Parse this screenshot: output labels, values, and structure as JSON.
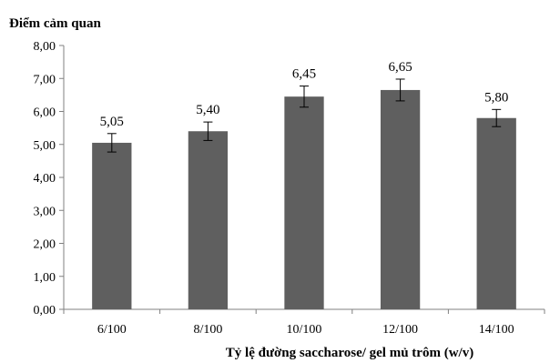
{
  "chart_data": {
    "type": "bar",
    "ylabel": "Điểm cảm quan",
    "xlabel": "Tỷ lệ đường saccharose/ gel mủ trôm (w/v)",
    "categories": [
      "6/100",
      "8/100",
      "10/100",
      "12/100",
      "14/100"
    ],
    "values": [
      5.05,
      5.4,
      6.45,
      6.65,
      5.8
    ],
    "value_labels": [
      "5,05",
      "5,40",
      "6,45",
      "6,65",
      "5,80"
    ],
    "error": [
      0.28,
      0.28,
      0.32,
      0.33,
      0.26
    ],
    "ylim": [
      0,
      8
    ],
    "yticks": [
      0,
      1,
      2,
      3,
      4,
      5,
      6,
      7,
      8
    ],
    "ytick_labels": [
      "0,00",
      "1,00",
      "2,00",
      "3,00",
      "4,00",
      "5,00",
      "6,00",
      "7,00",
      "8,00"
    ],
    "bar_color": "#5f5f5f",
    "axis_color": "#808080",
    "grid": false
  }
}
